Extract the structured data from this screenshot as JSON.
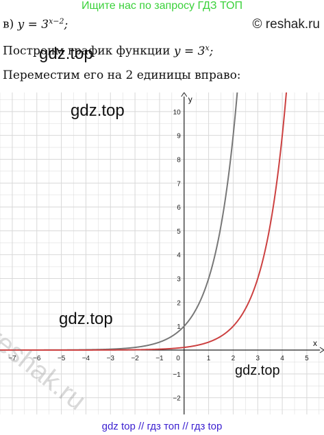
{
  "banner": "Ищите нас по запросу ГДЗ ТОП",
  "copyright": "© reshak.ru",
  "line1": {
    "prefix": "в) ",
    "formula": "y = 3^(x−2);"
  },
  "line2": {
    "text": "Построим график функции ",
    "formula": "y = 3^x;"
  },
  "line3": "Переместим его на 2 единицы вправо:",
  "watermarks": {
    "wm1": "gdz.top",
    "wm2": "gdz.top",
    "wm3": "gdz.top",
    "wm4": "gdz.top",
    "reshak": "reshak.ru"
  },
  "footer": "gdz top  //  гдз топ  //  гдз top",
  "colors": {
    "gray_curve": "#777777",
    "red_curve": "#cc4040",
    "grid": "#d8d8d8",
    "axis": "#222222"
  },
  "chart_data": {
    "type": "line",
    "xlabel": "x",
    "ylabel": "y",
    "xlim": [
      -7.5,
      5.7
    ],
    "ylim": [
      -2.7,
      10.8
    ],
    "x_ticks": [
      -7,
      -6,
      -5,
      -4,
      -3,
      -2,
      -1,
      1,
      2,
      3,
      4,
      5
    ],
    "y_ticks": [
      -2,
      -1,
      1,
      2,
      3,
      4,
      5,
      6,
      7,
      8,
      9,
      10
    ],
    "origin_label": "0",
    "grid": true,
    "series": [
      {
        "formula": "y = 3^x",
        "color": "#777777",
        "x": [
          -7.5,
          -6,
          -5,
          -4,
          -3,
          -2,
          -1,
          0,
          0.5,
          1,
          1.5,
          2,
          2.2
        ],
        "y": [
          0.0003,
          0.0014,
          0.0041,
          0.0123,
          0.037,
          0.111,
          0.333,
          1,
          1.732,
          3,
          5.196,
          9,
          11.21
        ]
      },
      {
        "formula": "y = 3^(x−2)",
        "color": "#cc4040",
        "x": [
          -7.5,
          -4,
          -2,
          -1,
          0,
          1,
          2,
          2.5,
          3,
          3.5,
          4,
          4.2
        ],
        "y": [
          3e-05,
          0.0014,
          0.0123,
          0.037,
          0.111,
          0.333,
          1,
          1.732,
          3,
          5.196,
          9,
          11.21
        ]
      }
    ]
  }
}
